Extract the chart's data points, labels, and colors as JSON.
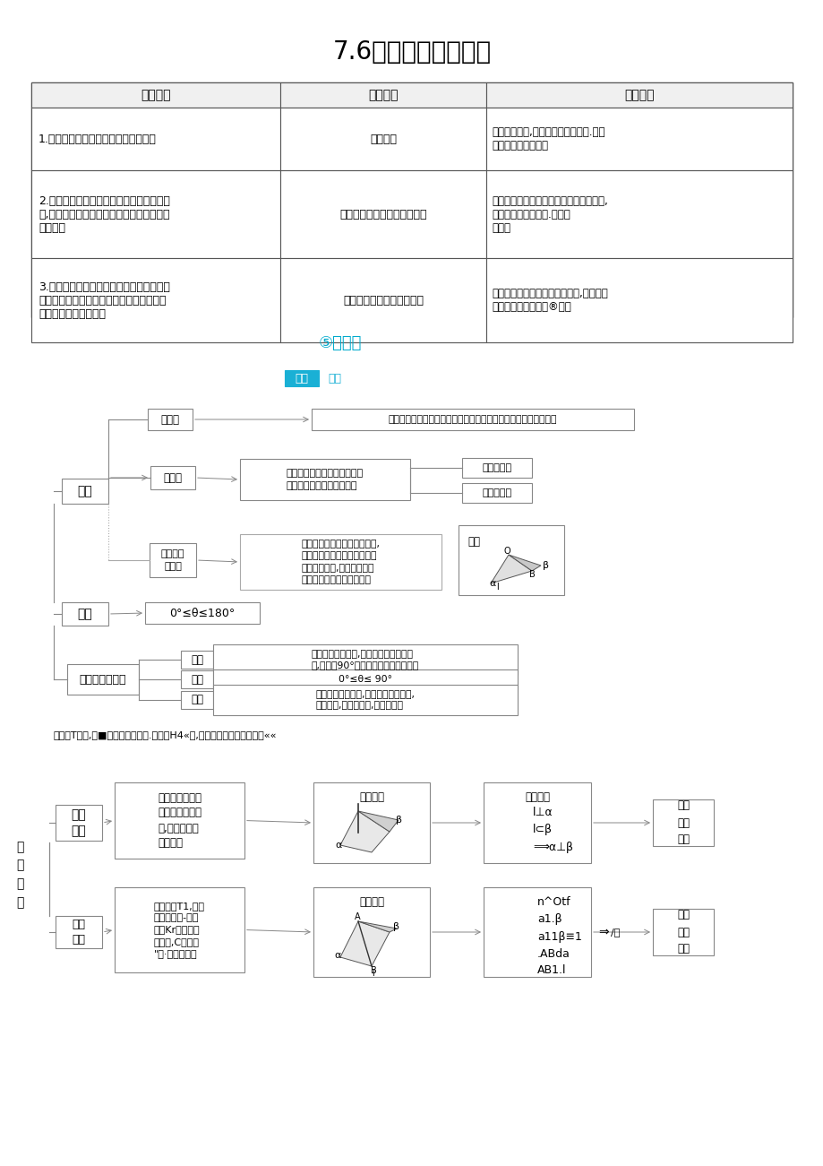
{
  "title": "7.6二面角与面面垂直",
  "bg_color": "#ffffff",
  "table_col1_header": "读标要求",
  "table_col2_header": "精细考点",
  "table_col3_header": "素养达成",
  "row1_col1": "1.理解二面角的概念和面面垂直的定义\n2.以立体几何中的定义、公理和定理为出发\n点,认识和理解平面与平面垂直的判定定理和\n性质定理\n3.能运用平面与平面垂直的判定定理、性质\n定理和已经获得的培论证明一些空间图形中\n的垂直关系的陆单命题",
  "row1_col2": "求二面角",
  "row1_col2b": "平面与平面垂直的判定与性质",
  "row1_col2c": "平行、垂直关系的综合运用",
  "row1_col3a": "通过求二面角,培养学生的遗筱推理.直混\n想象、数学运算素养",
  "row1_col3b": "通过平面与平面垂直的判定与性质的应用,\n培养学生的逻辑推理.直观想\n象素养",
  "row1_col3c": "通过平行与垂直关系的综合应用,培界学生\n的遗梯推理、直观理®素界",
  "annotation": "⑤构植电",
  "zhishi": "知识",
  "wangluo": "网络",
  "node_banpmian": "半平面",
  "banpmian_def": "平面内的一条直线把平面分成两部分，其中的每一部分都叫半平面",
  "node_dingyi": "定义",
  "node_ermianjiao": "二面角",
  "ermianjiao_def": "从一条直线出发的两个半平面\n所组成的图形，叫作二面角",
  "node_leng": "二面角的棱",
  "node_mian": "二靤角的面",
  "node_pingmianjiao": "二靤角的\n平面角",
  "pingmianjiao_def": "以二靤角的棱上任一点为端点,\n在两个半平面内分别作垂直于\n棱的两条射线,这两条射线所\n成的角叫作二靤角的平面角",
  "tuxing_label": "图形",
  "node_fanwei": "范围",
  "fanwei_val": "0°≤θ≤180°",
  "node_liangjiao": "两个平面的夹角",
  "sub_dingyi": "定义",
  "sub_fanwei": "范围",
  "sub_qiufa": "求法",
  "liangjiao_def": "如果两个平面相交,在相交所成的四个角\n中,不大于90°的角叫作两个平面的夹角",
  "liangjiao_fanwei": "0°≤θ≤ 90°",
  "liangjiao_qiufa": "同求二靤角的方法,求出的角在范围内,\n即为所求,不在范围内,则为其补角",
  "bottom_note": "厂定义T般地,如■两个中制所成的.肌角是H4«角,惠久我总这个个平面互和««",
  "mianzhi_label": "面\n面\n垂\n直",
  "pd_label": "判定\n定理",
  "pd_text": "如果一个平面过\n另一个平靤的垂\n线,那么这两个\n平靤垂直",
  "tuxing_yuyan": "图形语言",
  "fuhao_yuyan": "符号语言",
  "fuhao_pd": "l⊥α\nl⊂β\n⟹α⊥β",
  "zm1_label": "证明\n面靤\n垂直",
  "xz_label": "性质\n定理",
  "xz_text": "两个平靤T1,如果\n介平靤内有-条鱼\n线率Kr这科个平\n靤的绅,C么这条\n\"城·个平靤唯在",
  "fuhao_xz": "n^Οtf\na1.β\na11β≡1\n.ABda\nAB1.l",
  "zm2_label": "证明\n线靤\n垂直"
}
